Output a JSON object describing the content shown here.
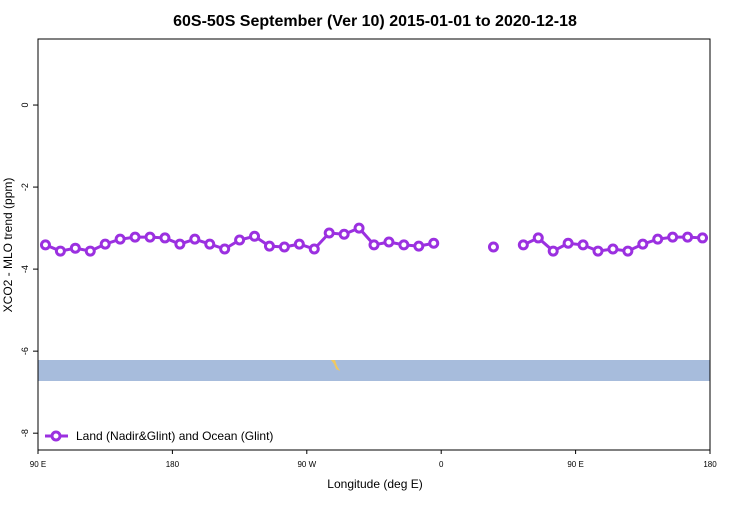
{
  "chart_data": {
    "type": "line",
    "title": "60S-50S September (Ver 10)   2015-01-01 to 2020-12-18",
    "x_label": "Longitude (deg E)",
    "y_label": "XCO2 - MLO trend (ppm)",
    "x": [
      95,
      105,
      115,
      125,
      135,
      145,
      155,
      165,
      175,
      185,
      195,
      205,
      215,
      225,
      235,
      245,
      255,
      265,
      275,
      285,
      295,
      305,
      315,
      325,
      335,
      345,
      355,
      365,
      375,
      385,
      395,
      405,
      415,
      425,
      435,
      445,
      455,
      465,
      475,
      485,
      495,
      505,
      515,
      525,
      535
    ],
    "series": [
      {
        "name": "Land (Nadir&Glint) and Ocean (Glint)",
        "color": "#9b30e0",
        "values": [
          -3.41,
          -3.56,
          -3.49,
          -3.56,
          -3.39,
          -3.27,
          -3.22,
          -3.22,
          -3.24,
          -3.39,
          -3.27,
          -3.39,
          -3.51,
          -3.29,
          -3.2,
          -3.44,
          -3.46,
          -3.39,
          -3.51,
          -3.12,
          -3.15,
          -3.0,
          -3.41,
          -3.34,
          -3.41,
          -3.44,
          -3.37,
          null,
          null,
          null,
          -3.46,
          null,
          -3.41,
          -3.24,
          -3.56,
          -3.37,
          -3.41,
          -3.56,
          -3.51,
          -3.56,
          -3.39,
          -3.27,
          -3.22,
          -3.22,
          -3.24
        ]
      }
    ],
    "xlim": [
      90,
      540
    ],
    "xticks": [
      {
        "value": 90,
        "label": "90 E"
      },
      {
        "value": 180,
        "label": "180"
      },
      {
        "value": 270,
        "label": "90 W"
      },
      {
        "value": 360,
        "label": "0"
      },
      {
        "value": 450,
        "label": "90 E"
      },
      {
        "value": 540,
        "label": "180"
      }
    ],
    "ylim": [
      -8.41,
      1.61
    ],
    "yticks": [
      0,
      -2,
      -4,
      -6,
      -8
    ],
    "legend": "bottom-left"
  }
}
